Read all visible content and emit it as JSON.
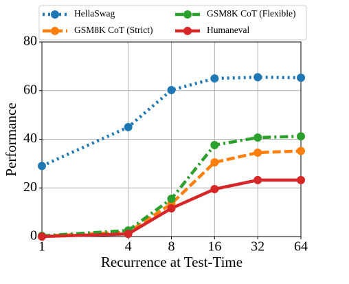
{
  "chart_data": {
    "type": "line",
    "xlabel": "Recurrence at Test-Time",
    "ylabel": "Performance",
    "x": [
      1,
      4,
      8,
      16,
      32,
      64
    ],
    "xscale": "log2",
    "xlim": [
      1,
      64
    ],
    "xticks": [
      1,
      4,
      8,
      16,
      32,
      64
    ],
    "ylim": [
      0,
      80
    ],
    "yticks": [
      0,
      20,
      40,
      60,
      80
    ],
    "grid": true,
    "series": [
      {
        "name": "HellaSwag",
        "color": "#1f77b4",
        "linestyle": "dotted",
        "values": [
          29,
          45,
          60.2,
          65,
          65.5,
          65.3
        ]
      },
      {
        "name": "GSM8K CoT (Strict)",
        "color": "#ff7f0e",
        "linestyle": "dashed",
        "values": [
          0.2,
          1.8,
          13.5,
          30.5,
          34.5,
          35.2
        ]
      },
      {
        "name": "GSM8K CoT (Flexible)",
        "color": "#2ca02c",
        "linestyle": "dashdot",
        "values": [
          0.3,
          2.5,
          15.5,
          37.6,
          40.7,
          41.2
        ]
      },
      {
        "name": "Humaneval",
        "color": "#d62728",
        "linestyle": "solid",
        "values": [
          0,
          1.1,
          11.6,
          19.5,
          23.2,
          23.2
        ]
      }
    ]
  }
}
